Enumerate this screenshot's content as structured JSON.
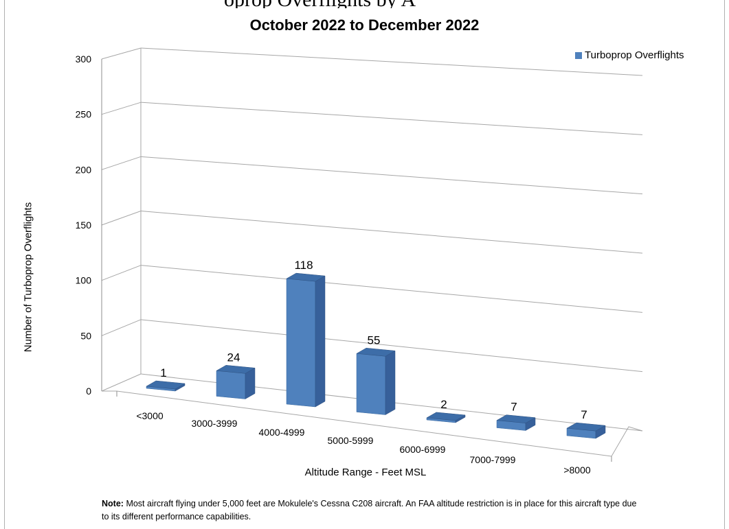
{
  "chart_data": {
    "type": "bar",
    "title": "October 2022 to December 2022",
    "xlabel": "Altitude Range - Feet MSL",
    "ylabel": "Number of Turboprop Overflights",
    "categories": [
      "<3000",
      "3000-3999",
      "4000-4999",
      "5000-5999",
      "6000-6999",
      "7000-7999",
      ">8000"
    ],
    "series": [
      {
        "name": "Turboprop Overflights",
        "values": [
          1,
          24,
          118,
          55,
          2,
          7,
          7
        ]
      }
    ],
    "ylim": [
      0,
      300
    ],
    "yticks": [
      0,
      50,
      100,
      150,
      200,
      250,
      300
    ],
    "grid": true,
    "legend_position": "top-right",
    "style": "3d-column",
    "bar_color": "#4f81bd"
  },
  "note": {
    "label": "Note:",
    "text": "Most aircraft flying under 5,000 feet are Mokulele's Cessna C208  aircraft. An FAA altitude restriction is in place for this aircraft type due to its different performance capabilities."
  },
  "top_fragment": "oprop Overflights by A"
}
